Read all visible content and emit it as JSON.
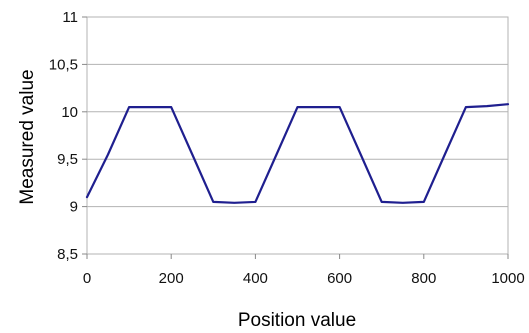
{
  "chart_data": {
    "type": "line",
    "title": "",
    "xlabel": "Position value",
    "ylabel": "Measured value",
    "xlim": [
      0,
      1000
    ],
    "ylim": [
      8.5,
      11
    ],
    "xticks": [
      0,
      200,
      400,
      600,
      800,
      1000
    ],
    "xtick_labels": [
      "0",
      "200",
      "400",
      "600",
      "800",
      "1000"
    ],
    "yticks": [
      8.5,
      9,
      9.5,
      10,
      10.5,
      11
    ],
    "ytick_labels": [
      "8,5",
      "9",
      "9,5",
      "10",
      "10,5",
      "11"
    ],
    "grid": "horizontal",
    "legend": "none",
    "series": [
      {
        "color": "#1f1f8f",
        "x": [
          0,
          50,
          100,
          150,
          200,
          250,
          300,
          350,
          400,
          450,
          500,
          550,
          600,
          650,
          700,
          750,
          800,
          850,
          900,
          950,
          1000
        ],
        "y": [
          9.1,
          9.55,
          10.05,
          10.05,
          10.05,
          9.55,
          9.05,
          9.04,
          9.05,
          9.55,
          10.05,
          10.05,
          10.05,
          9.55,
          9.05,
          9.04,
          9.05,
          9.55,
          10.05,
          10.06,
          10.08
        ]
      }
    ]
  }
}
